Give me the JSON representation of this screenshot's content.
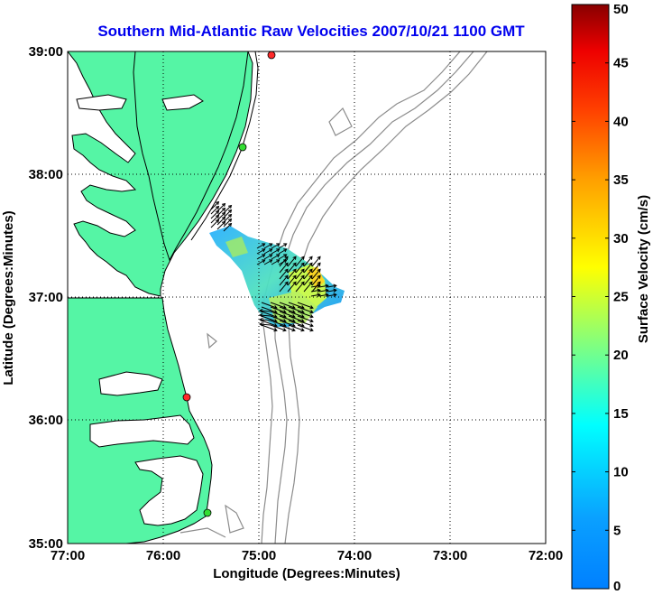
{
  "title": "Southern Mid-Atlantic Raw Velocities 2007/10/21 1100 GMT",
  "x_axis": {
    "label": "Longitude (Degrees:Minutes)",
    "ticks": [
      "77:00",
      "76:00",
      "75:00",
      "74:00",
      "73:00",
      "72:00"
    ]
  },
  "y_axis": {
    "label": "Latitude (Degrees:Minutes)",
    "ticks": [
      "39:00",
      "38:00",
      "37:00",
      "36:00",
      "35:00"
    ]
  },
  "colorbar": {
    "label": "Surface Velocity (cm/s)",
    "ticks": [
      "50",
      "45",
      "40",
      "35",
      "30",
      "25",
      "20",
      "15",
      "10",
      "5",
      "0"
    ],
    "range": [
      0,
      50
    ],
    "colormap": "jet"
  },
  "colors": {
    "land": "#55f5a5",
    "coast": "#000000",
    "bathymetry": "#8c8c8c",
    "title": "#0000ee",
    "station_active": "#ff2a2a",
    "station_inactive": "#33dd33",
    "grid": "#000000"
  },
  "grid": "dotted"
}
